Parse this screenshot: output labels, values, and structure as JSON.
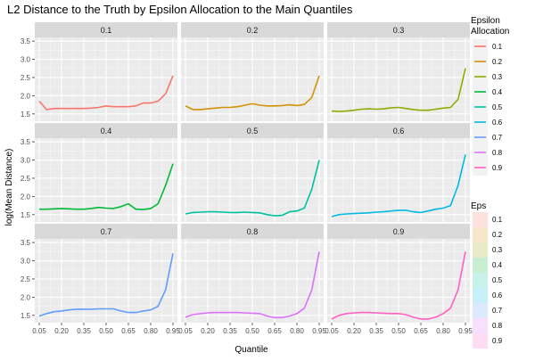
{
  "title": "L2 Distance to the Truth by Epsilon Allocation to the Main Quantiles",
  "chart_data": {
    "type": "line",
    "title": "L2 Distance to the Truth by Epsilon Allocation to the Main Quantiles",
    "xlabel": "Quantile",
    "ylabel": "log(Mean Distance)",
    "xlim": [
      0.02,
      0.98
    ],
    "ylim": [
      1.3,
      3.6
    ],
    "x_ticks": [
      "0.05",
      "0.20",
      "0.35",
      "0.50",
      "0.65",
      "0.80",
      "0.95"
    ],
    "y_ticks": [
      "1.5",
      "2.0",
      "2.5",
      "3.0",
      "3.5"
    ],
    "x": [
      0.05,
      0.1,
      0.15,
      0.2,
      0.25,
      0.3,
      0.35,
      0.4,
      0.45,
      0.5,
      0.55,
      0.6,
      0.65,
      0.7,
      0.75,
      0.8,
      0.85,
      0.9,
      0.95
    ],
    "grid": true,
    "facet_by": "Epsilon Allocation",
    "facets": [
      {
        "label": "0.1",
        "color": "#F8766D",
        "values": [
          1.85,
          1.62,
          1.65,
          1.65,
          1.65,
          1.65,
          1.65,
          1.66,
          1.68,
          1.72,
          1.7,
          1.7,
          1.7,
          1.72,
          1.8,
          1.8,
          1.85,
          2.05,
          2.55
        ]
      },
      {
        "label": "0.2",
        "color": "#D39200",
        "values": [
          1.72,
          1.62,
          1.62,
          1.64,
          1.66,
          1.68,
          1.68,
          1.7,
          1.74,
          1.78,
          1.74,
          1.72,
          1.72,
          1.73,
          1.75,
          1.73,
          1.76,
          1.95,
          2.55
        ]
      },
      {
        "label": "0.3",
        "color": "#93AA00",
        "values": [
          1.58,
          1.57,
          1.58,
          1.6,
          1.63,
          1.64,
          1.63,
          1.64,
          1.67,
          1.68,
          1.65,
          1.62,
          1.6,
          1.6,
          1.63,
          1.66,
          1.68,
          1.9,
          2.75
        ]
      },
      {
        "label": "0.4",
        "color": "#00BA38",
        "values": [
          1.65,
          1.65,
          1.66,
          1.67,
          1.66,
          1.65,
          1.65,
          1.67,
          1.7,
          1.68,
          1.67,
          1.72,
          1.8,
          1.65,
          1.64,
          1.67,
          1.8,
          2.3,
          2.9
        ]
      },
      {
        "label": "0.5",
        "color": "#00C19F",
        "values": [
          1.52,
          1.56,
          1.57,
          1.58,
          1.58,
          1.57,
          1.56,
          1.56,
          1.57,
          1.56,
          1.55,
          1.5,
          1.47,
          1.48,
          1.58,
          1.6,
          1.68,
          2.2,
          3.0
        ]
      },
      {
        "label": "0.6",
        "color": "#00B9E3",
        "values": [
          1.45,
          1.5,
          1.52,
          1.53,
          1.54,
          1.55,
          1.57,
          1.58,
          1.6,
          1.62,
          1.62,
          1.58,
          1.56,
          1.6,
          1.65,
          1.68,
          1.75,
          2.3,
          3.15
        ]
      },
      {
        "label": "0.7",
        "color": "#619CFF",
        "values": [
          1.48,
          1.55,
          1.6,
          1.62,
          1.65,
          1.67,
          1.67,
          1.67,
          1.68,
          1.68,
          1.68,
          1.62,
          1.58,
          1.58,
          1.62,
          1.65,
          1.75,
          2.2,
          3.2
        ]
      },
      {
        "label": "0.8",
        "color": "#DB72FB",
        "values": [
          1.45,
          1.52,
          1.55,
          1.57,
          1.58,
          1.58,
          1.58,
          1.58,
          1.57,
          1.56,
          1.55,
          1.48,
          1.44,
          1.44,
          1.48,
          1.55,
          1.7,
          2.2,
          3.25
        ]
      },
      {
        "label": "0.9",
        "color": "#FF61C3",
        "values": [
          1.4,
          1.5,
          1.55,
          1.57,
          1.58,
          1.58,
          1.57,
          1.56,
          1.55,
          1.55,
          1.52,
          1.45,
          1.4,
          1.4,
          1.45,
          1.55,
          1.7,
          2.2,
          3.25
        ]
      }
    ],
    "legend": {
      "title_line1": "Epsilon",
      "title_line2": "Allocation",
      "placement": "right",
      "entries": [
        "0.1",
        "0.2",
        "0.3",
        "0.4",
        "0.5",
        "0.6",
        "0.7",
        "0.8",
        "0.9"
      ]
    },
    "legend2": {
      "title": "Eps",
      "placement": "right",
      "entries": [
        "0.1",
        "0.2",
        "0.3",
        "0.4",
        "0.5",
        "0.6",
        "0.7",
        "0.8",
        "0.9"
      ]
    }
  }
}
